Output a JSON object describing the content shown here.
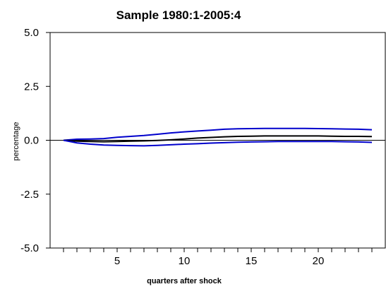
{
  "chart_data": {
    "type": "line",
    "title": "Sample 1980:1-2005:4",
    "xlabel": "quarters after shock",
    "ylabel": "percentage",
    "xlim": [
      0,
      25
    ],
    "ylim": [
      -5.0,
      5.0
    ],
    "xticks": [
      5,
      10,
      15,
      20
    ],
    "xtick_labels": [
      "5",
      "10",
      "15",
      "20"
    ],
    "yticks": [
      5.0,
      2.5,
      0.0,
      -2.5,
      -5.0
    ],
    "ytick_labels": [
      "5.0",
      "2.5",
      "0.0",
      "-2.5",
      "-5.0"
    ],
    "grid": false,
    "zero_line": true,
    "x": [
      1,
      2,
      3,
      4,
      5,
      6,
      7,
      8,
      9,
      10,
      11,
      12,
      13,
      14,
      15,
      16,
      17,
      18,
      19,
      20,
      21,
      22,
      23,
      24
    ],
    "series": [
      {
        "color": "#0000cc",
        "values": [
          0.0,
          0.05,
          0.06,
          0.08,
          0.14,
          0.18,
          0.22,
          0.28,
          0.34,
          0.39,
          0.43,
          0.47,
          0.51,
          0.53,
          0.54,
          0.55,
          0.55,
          0.55,
          0.55,
          0.54,
          0.53,
          0.52,
          0.51,
          0.49
        ]
      },
      {
        "color": "#000000",
        "values": [
          0.0,
          -0.04,
          -0.06,
          -0.07,
          -0.06,
          -0.04,
          -0.03,
          -0.01,
          0.02,
          0.06,
          0.1,
          0.13,
          0.16,
          0.18,
          0.19,
          0.2,
          0.2,
          0.2,
          0.2,
          0.2,
          0.19,
          0.18,
          0.18,
          0.17
        ]
      },
      {
        "color": "#0000cc",
        "values": [
          0.0,
          -0.12,
          -0.18,
          -0.22,
          -0.24,
          -0.25,
          -0.26,
          -0.24,
          -0.21,
          -0.18,
          -0.16,
          -0.13,
          -0.11,
          -0.09,
          -0.08,
          -0.07,
          -0.06,
          -0.06,
          -0.06,
          -0.06,
          -0.06,
          -0.07,
          -0.08,
          -0.1
        ]
      }
    ]
  }
}
